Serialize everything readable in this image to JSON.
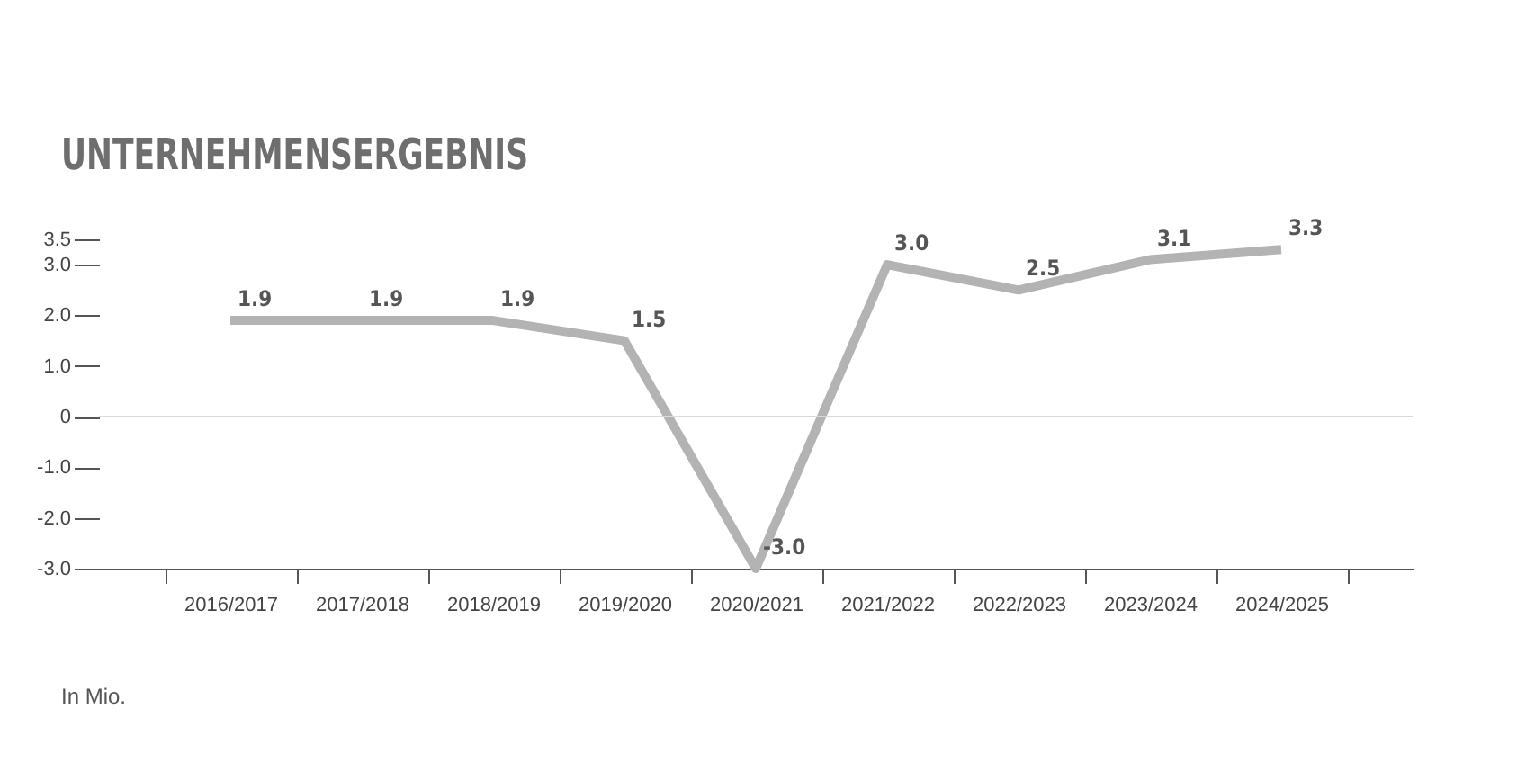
{
  "chart_data": {
    "type": "line",
    "title": "UNTERNEHMENSERGEBNIS",
    "categories": [
      "2016/2017",
      "2017/2018",
      "2018/2019",
      "2019/2020",
      "2020/2021",
      "2021/2022",
      "2022/2023",
      "2023/2024",
      "2024/2025"
    ],
    "series": [
      {
        "color": "#b3b3b3",
        "values": [
          1.9,
          1.9,
          1.9,
          1.5,
          -3.0,
          3.0,
          2.5,
          3.1,
          3.3
        ]
      }
    ],
    "value_labels": [
      "1.9",
      "1.9",
      "1.9",
      "1.5",
      "-3.0",
      "3.0",
      "2.5",
      "3.1",
      "3.3"
    ],
    "ylim": [
      -3.0,
      3.5
    ],
    "yticks": [
      {
        "value": -3,
        "label": "-3.0"
      },
      {
        "value": -2,
        "label": "-2.0"
      },
      {
        "value": -1,
        "label": "-1.0"
      },
      0,
      {
        "value": 1,
        "label": "1.0"
      },
      {
        "value": 2,
        "label": "2.0"
      },
      {
        "value": 3,
        "label": "3.0"
      },
      3.5
    ],
    "ref_lines": [
      {
        "axis": "y",
        "value": 0,
        "color": "#d9d9d9"
      }
    ],
    "line_style": "solid",
    "annotations": [
      "In Mio."
    ]
  }
}
